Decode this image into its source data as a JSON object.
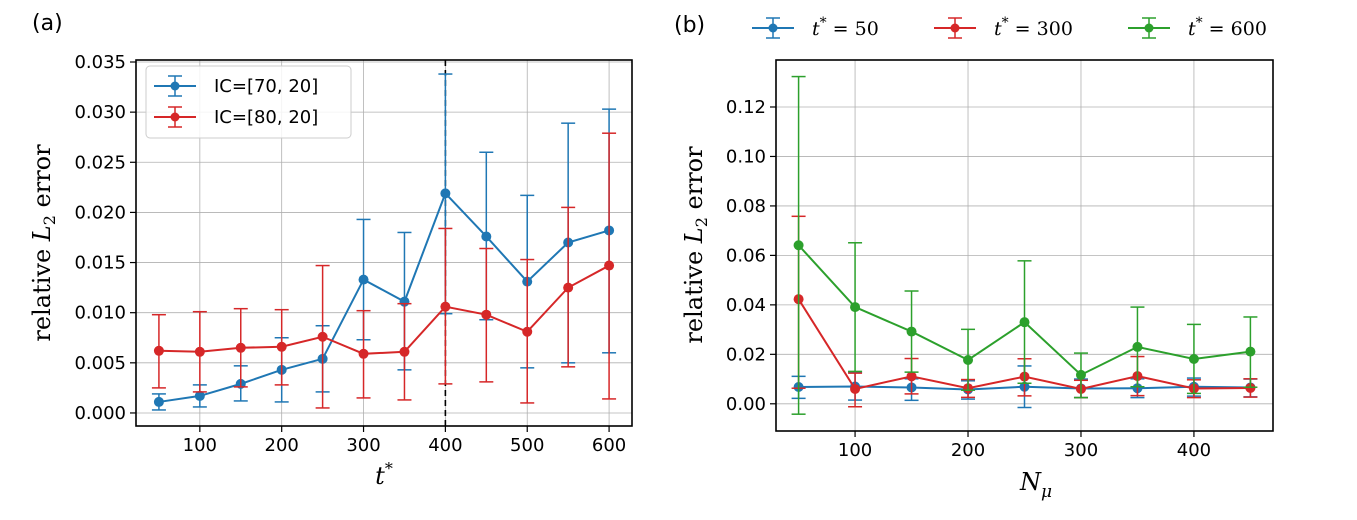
{
  "figure_title": "",
  "chart_data": [
    {
      "type": "line",
      "panel_label": "(a)",
      "title": "",
      "xlabel": "t*",
      "xlabel_main": "t",
      "xlabel_sup": "*",
      "ylabel": "relative L2 error",
      "ylabel_pre": "relative ",
      "ylabel_var": "L",
      "ylabel_sub": "2",
      "ylabel_post": " error",
      "xlim": [
        22,
        628
      ],
      "ylim": [
        -0.0013,
        0.0352
      ],
      "xticks": [
        100,
        200,
        300,
        400,
        500,
        600
      ],
      "xtick_labels": [
        "100",
        "200",
        "300",
        "400",
        "500",
        "600"
      ],
      "yticks": [
        0.0,
        0.005,
        0.01,
        0.015,
        0.02,
        0.025,
        0.03,
        0.035
      ],
      "ytick_labels": [
        "0.000",
        "0.005",
        "0.010",
        "0.015",
        "0.020",
        "0.025",
        "0.030",
        "0.035"
      ],
      "grid": true,
      "vline": {
        "x": 400,
        "style": "dashed",
        "color": "#000000"
      },
      "legend": {
        "location": "upper-left"
      },
      "x": [
        50,
        100,
        150,
        200,
        250,
        300,
        350,
        400,
        450,
        500,
        550,
        600
      ],
      "series": [
        {
          "name": "IC=[70, 20]",
          "color": "#1f77b4",
          "values": [
            0.0011,
            0.0017,
            0.0029,
            0.0043,
            0.0054,
            0.0133,
            0.0111,
            0.0219,
            0.0176,
            0.0131,
            0.017,
            0.0182
          ],
          "err_low": [
            0.0003,
            0.0006,
            0.0012,
            0.0011,
            0.0021,
            0.0073,
            0.0043,
            0.0099,
            0.0093,
            0.0045,
            0.005,
            0.006
          ],
          "err_high": [
            0.0019,
            0.0028,
            0.0047,
            0.0075,
            0.0087,
            0.0193,
            0.018,
            0.0338,
            0.026,
            0.0217,
            0.0289,
            0.0303
          ]
        },
        {
          "name": "IC=[80, 20]",
          "color": "#d62728",
          "values": [
            0.0062,
            0.0061,
            0.0065,
            0.0066,
            0.0076,
            0.0059,
            0.0061,
            0.0106,
            0.0098,
            0.0081,
            0.0125,
            0.0147
          ],
          "err_low": [
            0.0025,
            0.0021,
            0.0026,
            0.0028,
            0.0005,
            0.0015,
            0.0013,
            0.0029,
            0.0031,
            0.001,
            0.0046,
            0.0014
          ],
          "err_high": [
            0.0098,
            0.0101,
            0.0104,
            0.0103,
            0.0147,
            0.0102,
            0.0109,
            0.0184,
            0.0164,
            0.0153,
            0.0205,
            0.0279
          ]
        }
      ]
    },
    {
      "type": "line",
      "panel_label": "(b)",
      "title": "",
      "xlabel": "N_μ",
      "xlabel_main": "N",
      "xlabel_sub": "μ",
      "ylabel": "relative L2 error",
      "ylabel_pre": "relative ",
      "ylabel_var": "L",
      "ylabel_sub": "2",
      "ylabel_post": " error",
      "xlim": [
        30,
        470
      ],
      "ylim": [
        -0.011,
        0.139
      ],
      "xticks": [
        100,
        200,
        300,
        400
      ],
      "xtick_labels": [
        "100",
        "200",
        "300",
        "400"
      ],
      "yticks": [
        0.0,
        0.02,
        0.04,
        0.06,
        0.08,
        0.1,
        0.12
      ],
      "ytick_labels": [
        "0.00",
        "0.02",
        "0.04",
        "0.06",
        "0.08",
        "0.10",
        "0.12"
      ],
      "grid": true,
      "legend": {
        "location": "above-plot",
        "columns": 3
      },
      "x": [
        50,
        100,
        150,
        200,
        250,
        300,
        350,
        400,
        450
      ],
      "series": [
        {
          "name": "t* = 50",
          "label_var": "t",
          "label_sup": "*",
          "label_value": " = 50",
          "color": "#1f77b4",
          "values": [
            0.0068,
            0.007,
            0.0066,
            0.0058,
            0.0069,
            0.0062,
            0.0063,
            0.0069,
            0.0066
          ],
          "err_low": [
            0.0022,
            0.0015,
            0.0014,
            0.0019,
            -0.0015,
            0.0025,
            0.0025,
            0.0031,
            0.0028
          ],
          "err_high": [
            0.0111,
            0.0128,
            0.0101,
            0.0093,
            0.0153,
            0.01,
            0.0101,
            0.0104,
            0.01
          ]
        },
        {
          "name": "t* = 300",
          "label_var": "t",
          "label_sup": "*",
          "label_value": " = 300",
          "color": "#d62728",
          "values": [
            0.0423,
            0.006,
            0.0111,
            0.0063,
            0.011,
            0.006,
            0.0112,
            0.0062,
            0.0064
          ],
          "err_low": [
            0.0063,
            -0.0012,
            0.004,
            0.0026,
            0.0032,
            0.0025,
            0.0033,
            0.0025,
            0.0027
          ],
          "err_high": [
            0.0758,
            0.0124,
            0.0183,
            0.0098,
            0.0182,
            0.0095,
            0.0191,
            0.0097,
            0.0101
          ]
        },
        {
          "name": "t* = 600",
          "label_var": "t",
          "label_sup": "*",
          "label_value": " = 600",
          "color": "#2ca02c",
          "values": [
            0.0641,
            0.0391,
            0.0292,
            0.0177,
            0.033,
            0.0117,
            0.023,
            0.0181,
            0.0211
          ],
          "err_low": [
            -0.0042,
            0.0131,
            0.0128,
            0.0055,
            0.0083,
            0.0025,
            0.0069,
            0.0042,
            0.0067
          ],
          "err_high": [
            0.1323,
            0.0651,
            0.0456,
            0.0301,
            0.0578,
            0.0205,
            0.0391,
            0.0321,
            0.0351
          ]
        }
      ]
    }
  ]
}
